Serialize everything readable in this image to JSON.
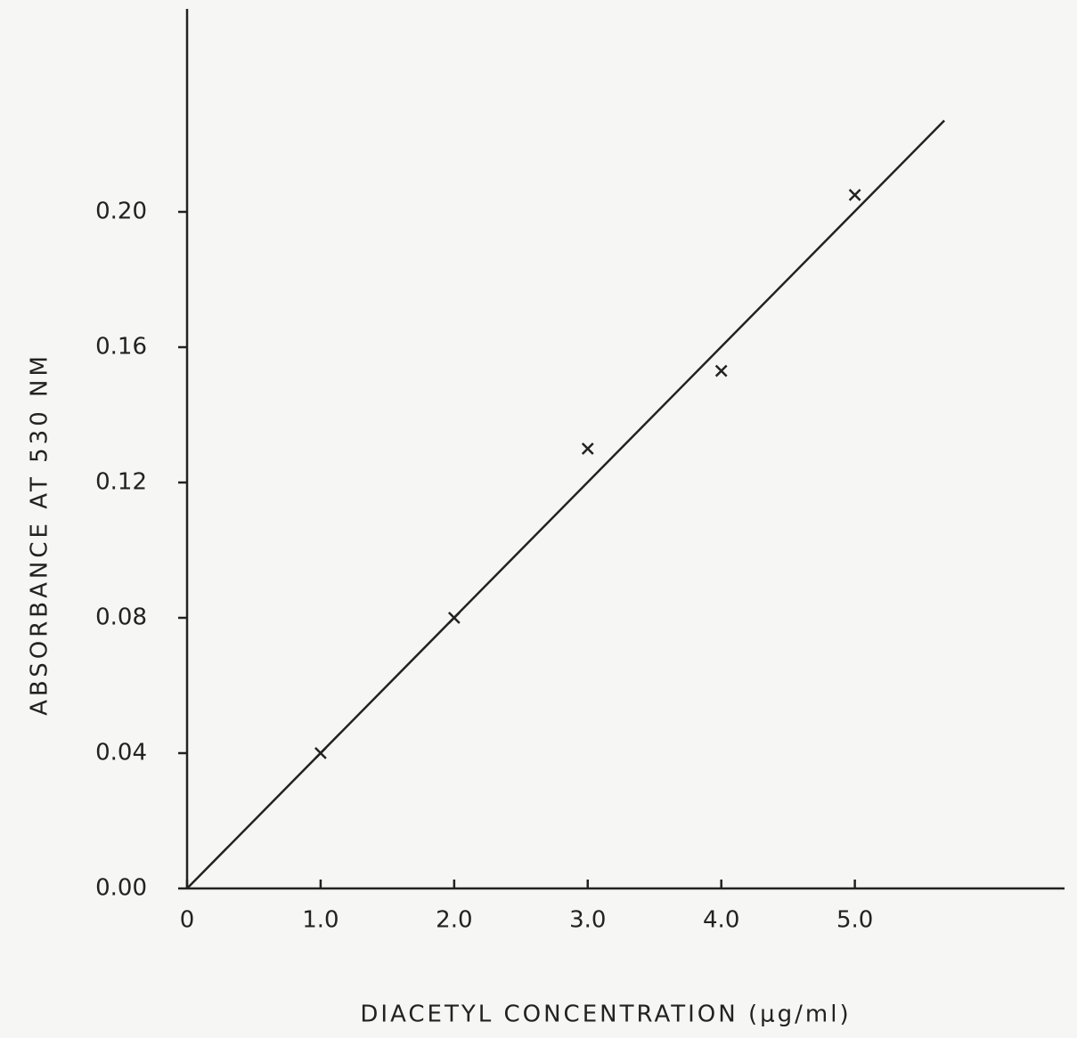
{
  "chart_data": {
    "type": "scatter",
    "x_label": "DIACETYL CONCENTRATION (μg/ml)",
    "y_label": "ABSORBANCE AT 530 NM",
    "x": [
      1.0,
      2.0,
      3.0,
      4.0,
      5.0
    ],
    "values": [
      0.04,
      0.08,
      0.13,
      0.153,
      0.205
    ],
    "color": "#222222",
    "fit_line": {
      "x": [
        0,
        5.67
      ],
      "y": [
        0,
        0.227
      ]
    },
    "xlim": [
      0,
      6.57
    ],
    "ylim": [
      0,
      0.26
    ],
    "xticks": [
      0,
      {
        "value": 1,
        "label": "1.0"
      },
      {
        "value": 2,
        "label": "2.0"
      },
      {
        "value": 3,
        "label": "3.0"
      },
      {
        "value": 4,
        "label": "4.0"
      },
      {
        "value": 5,
        "label": "5.0"
      }
    ],
    "yticks": [
      {
        "value": 0,
        "label": "0.00"
      },
      {
        "value": 0.04,
        "label": "0.04"
      },
      {
        "value": 0.08,
        "label": "0.08"
      },
      {
        "value": 0.12,
        "label": "0.12"
      },
      {
        "value": 0.16,
        "label": "0.16"
      },
      {
        "value": 0.2,
        "label": "0.20"
      }
    ],
    "grid": false
  }
}
